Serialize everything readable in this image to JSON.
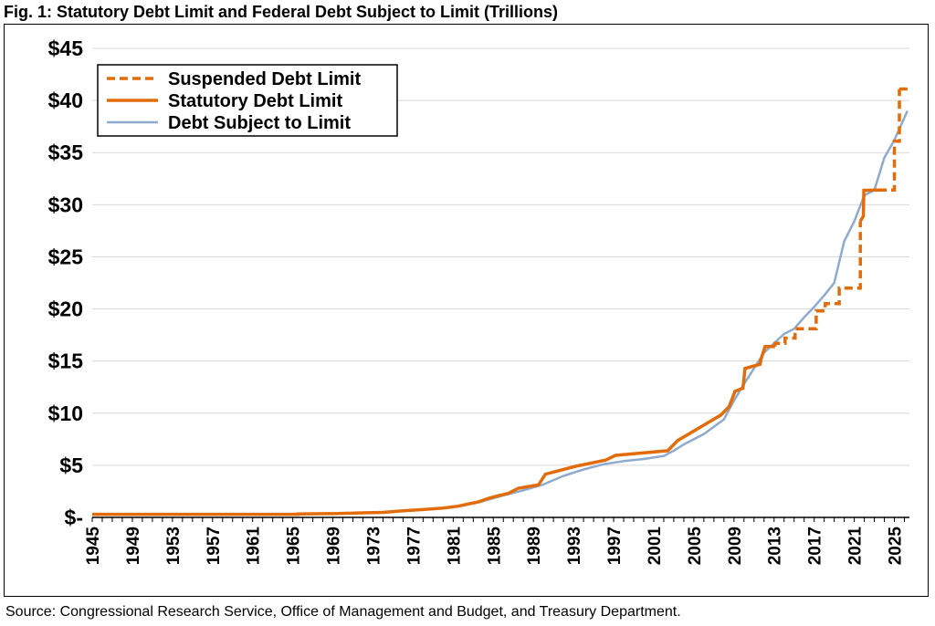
{
  "figure": {
    "title": "Fig. 1: Statutory Debt Limit and Federal Debt Subject to Limit (Trillions)",
    "source": "Source: Congressional Research Service, Office of Management and Budget, and Treasury Department."
  },
  "colors": {
    "debt_limit": "#e36c0a",
    "debt_subject": "#8eaacc",
    "grid": "#d9d9d9"
  },
  "chart_data": {
    "type": "line",
    "title": "Fig. 1: Statutory Debt Limit and Federal Debt Subject to Limit (Trillions)",
    "xlabel": "",
    "ylabel": "",
    "xlim": [
      1945,
      2026.5
    ],
    "ylim": [
      0,
      45
    ],
    "grid": "horizontal",
    "legend_position": "top-left",
    "y_ticks": [
      {
        "value": 0,
        "label": "$-"
      },
      {
        "value": 5,
        "label": "$5"
      },
      {
        "value": 10,
        "label": "$10"
      },
      {
        "value": 15,
        "label": "$15"
      },
      {
        "value": 20,
        "label": "$20"
      },
      {
        "value": 25,
        "label": "$25"
      },
      {
        "value": 30,
        "label": "$30"
      },
      {
        "value": 35,
        "label": "$35"
      },
      {
        "value": 40,
        "label": "$40"
      },
      {
        "value": 45,
        "label": "$45"
      }
    ],
    "x_ticks": [
      "1945",
      "1949",
      "1953",
      "1957",
      "1961",
      "1965",
      "1969",
      "1973",
      "1977",
      "1981",
      "1985",
      "1989",
      "1993",
      "1997",
      "2001",
      "2005",
      "2009",
      "2013",
      "2017",
      "2021",
      "2025"
    ],
    "series": [
      {
        "name": "Suspended Debt Limit",
        "style": "dashed",
        "segments": [
          [
            [
              2013.1,
              16.4
            ],
            [
              2013.1,
              16.7
            ],
            [
              2014.1,
              16.7
            ],
            [
              2014.1,
              17.2
            ],
            [
              2015.1,
              17.2
            ],
            [
              2015.1,
              18.1
            ],
            [
              2017.2,
              18.1
            ],
            [
              2017.2,
              19.8
            ],
            [
              2018.1,
              19.8
            ],
            [
              2018.1,
              20.5
            ],
            [
              2019.5,
              20.5
            ],
            [
              2019.5,
              22.0
            ],
            [
              2021.6,
              22.0
            ],
            [
              2021.6,
              28.4
            ]
          ],
          [
            [
              2023.4,
              31.4
            ],
            [
              2025.0,
              31.4
            ],
            [
              2025.0,
              36.1
            ],
            [
              2025.5,
              36.1
            ],
            [
              2025.5,
              41.1
            ]
          ]
        ]
      },
      {
        "name": "Statutory Debt Limit",
        "style": "solid",
        "segments": [
          [
            [
              1945.0,
              0.3
            ],
            [
              1965.5,
              0.3
            ],
            [
              1965.5,
              0.33
            ],
            [
              1969.5,
              0.37
            ],
            [
              1971.5,
              0.43
            ],
            [
              1974.0,
              0.48
            ],
            [
              1976.0,
              0.64
            ],
            [
              1978.0,
              0.75
            ],
            [
              1980.0,
              0.9
            ],
            [
              1981.5,
              1.08
            ],
            [
              1982.5,
              1.29
            ],
            [
              1983.5,
              1.49
            ],
            [
              1984.5,
              1.82
            ],
            [
              1985.5,
              2.08
            ],
            [
              1986.5,
              2.3
            ],
            [
              1987.5,
              2.8
            ],
            [
              1989.5,
              3.12
            ],
            [
              1990.2,
              4.15
            ],
            [
              1993.2,
              4.9
            ],
            [
              1996.2,
              5.5
            ],
            [
              1997.2,
              5.95
            ],
            [
              2002.4,
              6.4
            ],
            [
              2003.4,
              7.38
            ],
            [
              2004.8,
              8.18
            ],
            [
              2006.2,
              8.97
            ],
            [
              2007.7,
              9.82
            ],
            [
              2008.5,
              10.6
            ],
            [
              2008.8,
              11.3
            ],
            [
              2009.1,
              12.1
            ],
            [
              2009.9,
              12.4
            ],
            [
              2010.1,
              14.29
            ],
            [
              2011.6,
              14.69
            ],
            [
              2011.7,
              15.19
            ],
            [
              2012.1,
              16.39
            ],
            [
              2013.1,
              16.4
            ]
          ],
          [
            [
              2021.6,
              28.4
            ],
            [
              2021.9,
              28.9
            ],
            [
              2021.96,
              31.38
            ],
            [
              2023.4,
              31.4
            ]
          ],
          [
            [
              2025.5,
              41.1
            ],
            [
              2026.3,
              41.1
            ]
          ]
        ]
      },
      {
        "name": "Debt Subject to Limit",
        "style": "solid",
        "points": [
          [
            1945,
            0.27
          ],
          [
            1950,
            0.26
          ],
          [
            1955,
            0.27
          ],
          [
            1960,
            0.28
          ],
          [
            1965,
            0.3
          ],
          [
            1970,
            0.37
          ],
          [
            1975,
            0.53
          ],
          [
            1978,
            0.77
          ],
          [
            1980,
            0.91
          ],
          [
            1982,
            1.14
          ],
          [
            1984,
            1.57
          ],
          [
            1986,
            2.11
          ],
          [
            1988,
            2.6
          ],
          [
            1990,
            3.16
          ],
          [
            1992,
            3.98
          ],
          [
            1994,
            4.6
          ],
          [
            1996,
            5.1
          ],
          [
            1998,
            5.4
          ],
          [
            2000,
            5.6
          ],
          [
            2002,
            5.9
          ],
          [
            2003,
            6.4
          ],
          [
            2004,
            7.0
          ],
          [
            2006,
            8.0
          ],
          [
            2008,
            9.4
          ],
          [
            2009,
            11.2
          ],
          [
            2010,
            12.8
          ],
          [
            2011,
            14.3
          ],
          [
            2012,
            15.8
          ],
          [
            2013,
            16.7
          ],
          [
            2014,
            17.6
          ],
          [
            2015,
            18.1
          ],
          [
            2016,
            19.2
          ],
          [
            2017,
            20.2
          ],
          [
            2018,
            21.3
          ],
          [
            2019,
            22.5
          ],
          [
            2020,
            26.5
          ],
          [
            2021,
            28.4
          ],
          [
            2022,
            30.9
          ],
          [
            2023,
            31.4
          ],
          [
            2024,
            34.5
          ],
          [
            2025,
            36.2
          ],
          [
            2026.3,
            39.0
          ]
        ]
      }
    ]
  }
}
